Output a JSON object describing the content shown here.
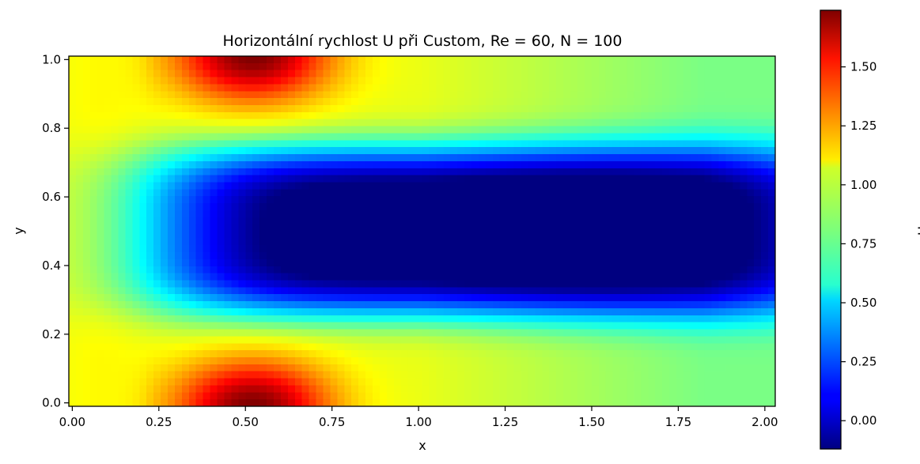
{
  "chart_data": {
    "type": "heatmap",
    "title": "Horizontální rychlost U při Custom, Re = 60, N = 100",
    "xlabel": "x",
    "ylabel": "y",
    "xlim": [
      -0.01,
      2.03
    ],
    "ylim": [
      -0.01,
      1.01
    ],
    "xticks": [
      0.0,
      0.25,
      0.5,
      0.75,
      1.0,
      1.25,
      1.5,
      1.75,
      2.0
    ],
    "xtick_labels": [
      "0.00",
      "0.25",
      "0.50",
      "0.75",
      "1.00",
      "1.25",
      "1.50",
      "1.75",
      "2.00"
    ],
    "yticks": [
      0.0,
      0.2,
      0.4,
      0.6,
      0.8,
      1.0
    ],
    "ytick_labels": [
      "0.0",
      "0.2",
      "0.4",
      "0.6",
      "0.8",
      "1.0"
    ],
    "colormap": "jet",
    "colorbar": {
      "label": "U",
      "vmin": -0.12,
      "vmax": 1.74,
      "ticks": [
        0.0,
        0.25,
        0.5,
        0.75,
        1.0,
        1.25,
        1.5
      ],
      "tick_labels": [
        "0.00",
        "0.25",
        "0.50",
        "0.75",
        "1.00",
        "1.25",
        "1.50"
      ]
    },
    "field": {
      "x_range": [
        0.0,
        2.0
      ],
      "y_range": [
        0.0,
        1.0
      ],
      "nx": 100,
      "ny": 50,
      "features": [
        {
          "name": "inflow-plateau",
          "x_end": 0.12,
          "value": 1.0
        },
        {
          "name": "upper-jet",
          "x": 0.52,
          "y": 0.97,
          "peak": 1.74
        },
        {
          "name": "lower-jet",
          "x": 0.52,
          "y": 0.03,
          "peak": 1.74
        },
        {
          "name": "central-recirculation",
          "x": 1.05,
          "y": 0.5,
          "min": -0.12
        },
        {
          "name": "outflow",
          "x_start": 1.75,
          "value": 0.8
        }
      ]
    },
    "grid": false
  }
}
